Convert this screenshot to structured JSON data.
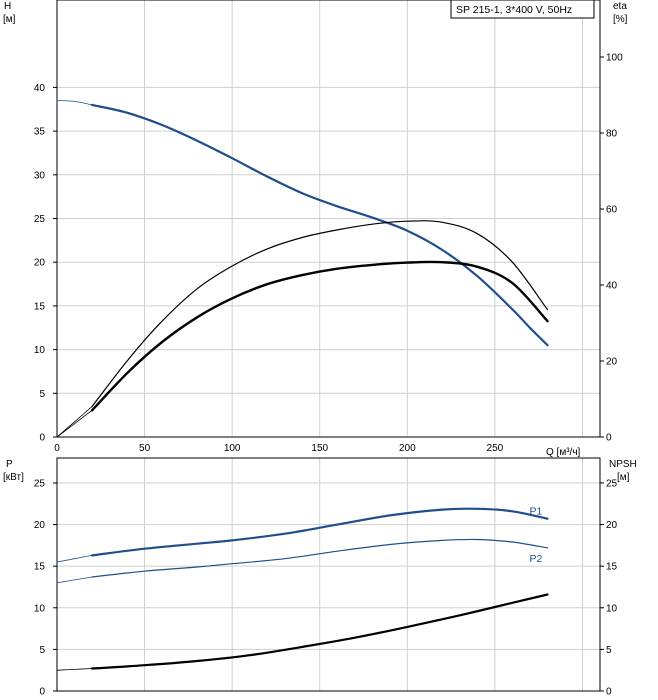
{
  "model_label": "SP 215-1, 3*400 V, 50Hz",
  "colors": {
    "blue": "#1f4e8c",
    "black": "#000000",
    "grid": "#cfcfcf"
  },
  "chart_data": [
    {
      "type": "line",
      "name": "performance",
      "xlabel": "Q [м³/ч]",
      "ylabel_left": [
        "H",
        "[м]"
      ],
      "ylabel_right": [
        "eta",
        "[%]"
      ],
      "xlim": [
        0,
        310
      ],
      "ylim_left": [
        0,
        50
      ],
      "ylim_right": [
        0,
        115
      ],
      "x_ticks": [
        0,
        50,
        100,
        150,
        200,
        250
      ],
      "y_ticks_left": [
        0,
        5,
        10,
        15,
        20,
        25,
        30,
        35,
        40
      ],
      "y_ticks_right": [
        0,
        20,
        40,
        60,
        80,
        100
      ],
      "grid": true,
      "series": [
        {
          "name": "H",
          "axis": "left",
          "color": "blue",
          "width": 2.2,
          "x": [
            20,
            40,
            60,
            80,
            100,
            120,
            140,
            160,
            180,
            200,
            220,
            240,
            260,
            270,
            280
          ],
          "y": [
            38.0,
            37.1,
            35.7,
            33.9,
            31.9,
            29.8,
            27.9,
            26.4,
            25.1,
            23.6,
            21.4,
            18.4,
            14.6,
            12.5,
            10.5
          ]
        },
        {
          "axis": "left",
          "color": "blue",
          "width": 0.8,
          "x": [
            0,
            10,
            20
          ],
          "y": [
            38.5,
            38.4,
            38.0
          ]
        },
        {
          "name": "eta",
          "axis": "right",
          "color": "black",
          "width": 1.2,
          "x": [
            20,
            40,
            60,
            80,
            100,
            120,
            140,
            160,
            180,
            200,
            220,
            240,
            260,
            280
          ],
          "y": [
            8,
            20,
            30.5,
            39,
            45,
            49.5,
            52.5,
            54.5,
            56,
            56.8,
            56.5,
            53.5,
            46,
            33.5
          ]
        },
        {
          "axis": "right",
          "color": "black",
          "width": 0.8,
          "x": [
            0,
            10,
            20
          ],
          "y": [
            0,
            4,
            8
          ]
        },
        {
          "name": "eta_total",
          "axis": "right",
          "color": "black",
          "width": 2.4,
          "x": [
            20,
            40,
            60,
            80,
            100,
            120,
            140,
            160,
            180,
            200,
            220,
            240,
            260,
            280
          ],
          "y": [
            7,
            16.8,
            25,
            31.5,
            36.5,
            40.2,
            42.6,
            44.3,
            45.3,
            45.9,
            46,
            44.8,
            40.5,
            30.5
          ]
        },
        {
          "axis": "right",
          "color": "black",
          "width": 0.8,
          "x": [
            0,
            10,
            20
          ],
          "y": [
            0,
            3.5,
            7
          ]
        }
      ]
    },
    {
      "type": "line",
      "name": "power-npsh",
      "ylabel_left": [
        "P",
        "[кВт]"
      ],
      "ylabel_right": [
        "NPSH",
        "[м]"
      ],
      "xlim": [
        0,
        310
      ],
      "ylim_left": [
        0,
        28
      ],
      "ylim_right": [
        0,
        28
      ],
      "y_ticks_left": [
        0,
        5,
        10,
        15,
        20,
        25
      ],
      "y_ticks_right": [
        0,
        5,
        10,
        15,
        20,
        25
      ],
      "grid": true,
      "series": [
        {
          "name": "P1",
          "axis": "left",
          "color": "blue",
          "width": 2.2,
          "x": [
            20,
            50,
            80,
            100,
            130,
            160,
            190,
            220,
            240,
            260,
            280
          ],
          "y": [
            16.3,
            17.1,
            17.7,
            18.1,
            18.9,
            20.0,
            21.1,
            21.8,
            21.9,
            21.6,
            20.7
          ]
        },
        {
          "axis": "left",
          "color": "blue",
          "width": 0.8,
          "x": [
            0,
            10,
            20
          ],
          "y": [
            15.5,
            15.9,
            16.3
          ]
        },
        {
          "name": "P2",
          "axis": "left",
          "color": "blue",
          "width": 1.2,
          "x": [
            20,
            50,
            80,
            100,
            130,
            160,
            190,
            220,
            240,
            260,
            280
          ],
          "y": [
            13.7,
            14.4,
            14.9,
            15.3,
            15.9,
            16.8,
            17.6,
            18.1,
            18.2,
            17.9,
            17.2
          ]
        },
        {
          "axis": "left",
          "color": "blue",
          "width": 0.8,
          "x": [
            0,
            10,
            20
          ],
          "y": [
            13.0,
            13.35,
            13.7
          ]
        },
        {
          "name": "NPSH",
          "axis": "right",
          "color": "black",
          "width": 2.2,
          "x": [
            20,
            50,
            80,
            110,
            140,
            170,
            200,
            230,
            260,
            280
          ],
          "y": [
            2.7,
            3.1,
            3.6,
            4.3,
            5.3,
            6.4,
            7.7,
            9.1,
            10.6,
            11.6
          ]
        },
        {
          "axis": "right",
          "color": "black",
          "width": 0.8,
          "x": [
            0,
            10,
            20
          ],
          "y": [
            2.5,
            2.6,
            2.7
          ]
        }
      ]
    }
  ]
}
